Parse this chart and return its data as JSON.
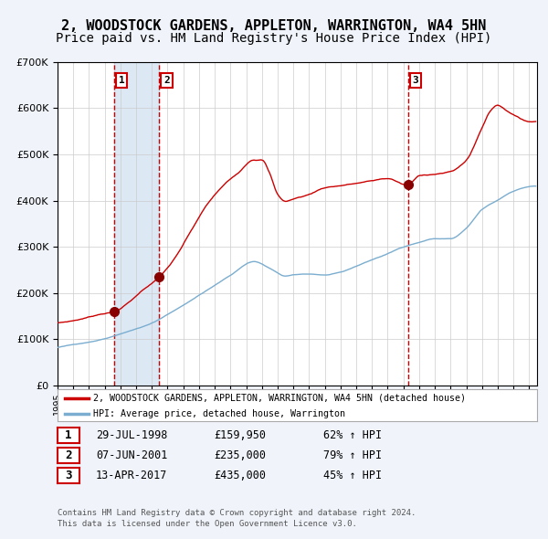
{
  "title": "2, WOODSTOCK GARDENS, APPLETON, WARRINGTON, WA4 5HN",
  "subtitle": "Price paid vs. HM Land Registry's House Price Index (HPI)",
  "legend_house": "2, WOODSTOCK GARDENS, APPLETON, WARRINGTON, WA4 5HN (detached house)",
  "legend_hpi": "HPI: Average price, detached house, Warrington",
  "footnote1": "Contains HM Land Registry data © Crown copyright and database right 2024.",
  "footnote2": "This data is licensed under the Open Government Licence v3.0.",
  "transactions": [
    {
      "num": 1,
      "date": "29-JUL-1998",
      "price": 159950,
      "pct": "62%",
      "dir": "↑"
    },
    {
      "num": 2,
      "date": "07-JUN-2001",
      "price": 235000,
      "pct": "79%",
      "dir": "↑"
    },
    {
      "num": 3,
      "date": "13-APR-2017",
      "price": 435000,
      "pct": "45%",
      "dir": "↑"
    }
  ],
  "sale_years": [
    1998.58,
    2001.44,
    2017.28
  ],
  "sale_prices": [
    159950,
    235000,
    435000
  ],
  "vline_colors": [
    "#cc0000",
    "#cc0000",
    "#cc0000"
  ],
  "shade_x1": 1998.58,
  "shade_x2": 2001.44,
  "shade_color": "#dce9f5",
  "ylim": [
    0,
    700000
  ],
  "xlim_start": 1995.0,
  "xlim_end": 2025.5,
  "house_line_color": "#cc0000",
  "hpi_line_color": "#7aadcf",
  "background_color": "#f0f4fa",
  "plot_bg_color": "#ffffff",
  "grid_color": "#cccccc",
  "title_fontsize": 11,
  "subtitle_fontsize": 10,
  "hpi_knots_x": [
    1995.0,
    1996.0,
    1997.0,
    1998.0,
    1999.0,
    2000.0,
    2001.0,
    2002.0,
    2003.0,
    2004.0,
    2005.0,
    2006.0,
    2007.5,
    2008.5,
    2009.5,
    2010.0,
    2011.0,
    2012.0,
    2013.0,
    2014.0,
    2015.0,
    2016.0,
    2017.0,
    2018.0,
    2019.0,
    2020.0,
    2021.0,
    2022.0,
    2023.0,
    2024.0,
    2025.0
  ],
  "hpi_knots_y": [
    82000,
    88000,
    94000,
    102000,
    113000,
    124000,
    136000,
    155000,
    175000,
    197000,
    218000,
    240000,
    270000,
    255000,
    238000,
    240000,
    242000,
    240000,
    245000,
    258000,
    272000,
    285000,
    300000,
    310000,
    318000,
    318000,
    340000,
    380000,
    400000,
    420000,
    430000
  ],
  "house_knots_x": [
    1995.0,
    1996.0,
    1997.0,
    1998.0,
    1998.58,
    1999.5,
    2000.5,
    2001.44,
    2002.5,
    2003.5,
    2004.5,
    2005.5,
    2006.5,
    2007.5,
    2008.0,
    2008.5,
    2009.0,
    2009.5,
    2010.0,
    2011.0,
    2012.0,
    2013.0,
    2014.0,
    2015.0,
    2016.0,
    2017.28,
    2017.5,
    2018.0,
    2019.0,
    2020.0,
    2021.0,
    2022.0,
    2022.5,
    2023.0,
    2023.5,
    2024.0,
    2024.5,
    2025.0
  ],
  "house_knots_y": [
    135000,
    140000,
    148000,
    157000,
    159950,
    180000,
    210000,
    235000,
    278000,
    335000,
    390000,
    430000,
    460000,
    490000,
    490000,
    460000,
    415000,
    400000,
    405000,
    415000,
    430000,
    435000,
    440000,
    445000,
    450000,
    435000,
    440000,
    455000,
    460000,
    465000,
    490000,
    560000,
    595000,
    610000,
    600000,
    590000,
    580000,
    575000
  ]
}
